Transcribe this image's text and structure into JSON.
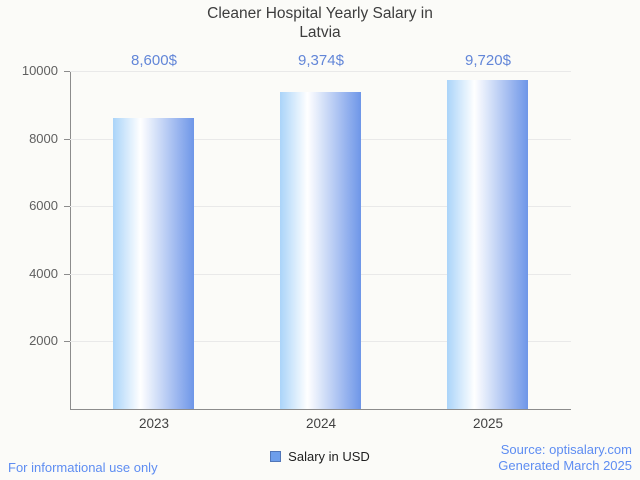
{
  "title": "Cleaner Hospital Yearly Salary in Latvia",
  "legend": {
    "label": "Salary in USD"
  },
  "footer": {
    "disclaimer": "For informational use only",
    "source_line1": "Source: optisalary.com",
    "source_line2": "Generated March 2025"
  },
  "colors": {
    "background": "#fbfbf8",
    "bar_gradient_left": "#aad4f9",
    "bar_gradient_mid": "#ffffff",
    "bar_gradient_right": "#6e96e8",
    "value_label": "#6286d8",
    "link_text": "#5e8df2",
    "legend_marker_fill": "#6d9eeb",
    "legend_marker_border": "#5176b8",
    "axis": "#8c8c8c",
    "gridline": "#e9e9e9",
    "tick_label": "#5f5f5f",
    "category_label": "#424242",
    "title_text": "#3d3d3d"
  },
  "chart_data": {
    "type": "bar",
    "title": "Cleaner Hospital Yearly Salary in Latvia",
    "categories": [
      "2023",
      "2024",
      "2025"
    ],
    "values": [
      8600,
      9374,
      9720
    ],
    "value_labels": [
      "8,600$",
      "9,374$",
      "9,720$"
    ],
    "series_name": "Salary in USD",
    "xlabel": "",
    "ylabel": "",
    "ylim": [
      0,
      10000
    ],
    "y_ticks": [
      2000,
      4000,
      6000,
      8000,
      10000
    ],
    "grid": true,
    "legend_position": "bottom-center"
  }
}
